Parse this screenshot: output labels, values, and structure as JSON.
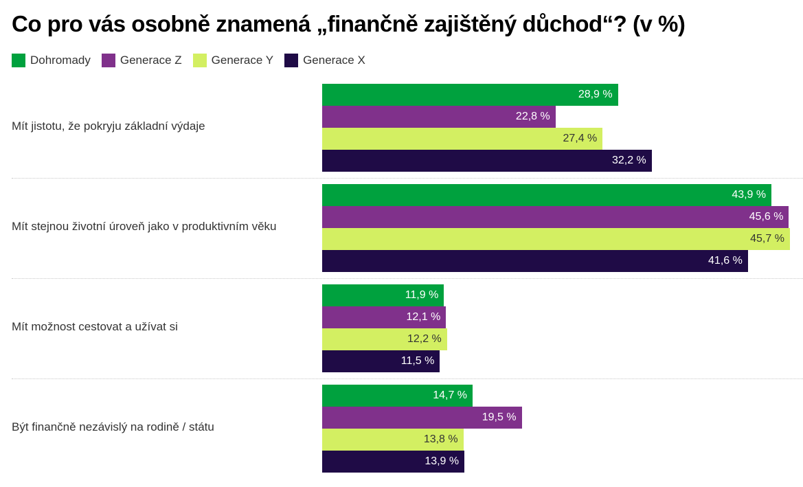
{
  "chart_data": {
    "type": "bar",
    "orientation": "horizontal",
    "title": "Co pro vás osobně znamená „finančně zajištěný důchod“? (v %)",
    "xlabel": "",
    "ylabel": "",
    "xlim": [
      0,
      46
    ],
    "grid": false,
    "legend_position": "top-left",
    "categories": [
      "Mít jistotu, že pokryju základní výdaje",
      "Mít stejnou životní úroveň jako v produktivním věku",
      "Mít možnost cestovat a užívat si",
      "Být finančně nezávislý na rodině / státu"
    ],
    "series": [
      {
        "name": "Dohromady",
        "color": "#00a13e",
        "label_color": "#ffffff",
        "values": [
          28.9,
          43.9,
          11.9,
          14.7
        ],
        "labels": [
          "28,9 %",
          "43,9 %",
          "11,9 %",
          "14,7 %"
        ]
      },
      {
        "name": "Generace Z",
        "color": "#80318b",
        "label_color": "#ffffff",
        "values": [
          22.8,
          45.6,
          12.1,
          19.5
        ],
        "labels": [
          "22,8 %",
          "45,6 %",
          "12,1 %",
          "19,5 %"
        ]
      },
      {
        "name": "Generace Y",
        "color": "#d3ef62",
        "label_color": "#333333",
        "values": [
          27.4,
          45.7,
          12.2,
          13.8
        ],
        "labels": [
          "27,4 %",
          "45,7 %",
          "12,2 %",
          "13,8 %"
        ]
      },
      {
        "name": "Generace X",
        "color": "#1f0b46",
        "label_color": "#ffffff",
        "values": [
          32.2,
          41.6,
          11.5,
          13.9
        ],
        "labels": [
          "32,2 %",
          "41,6 %",
          "11,5 %",
          "13,9 %"
        ]
      }
    ]
  }
}
